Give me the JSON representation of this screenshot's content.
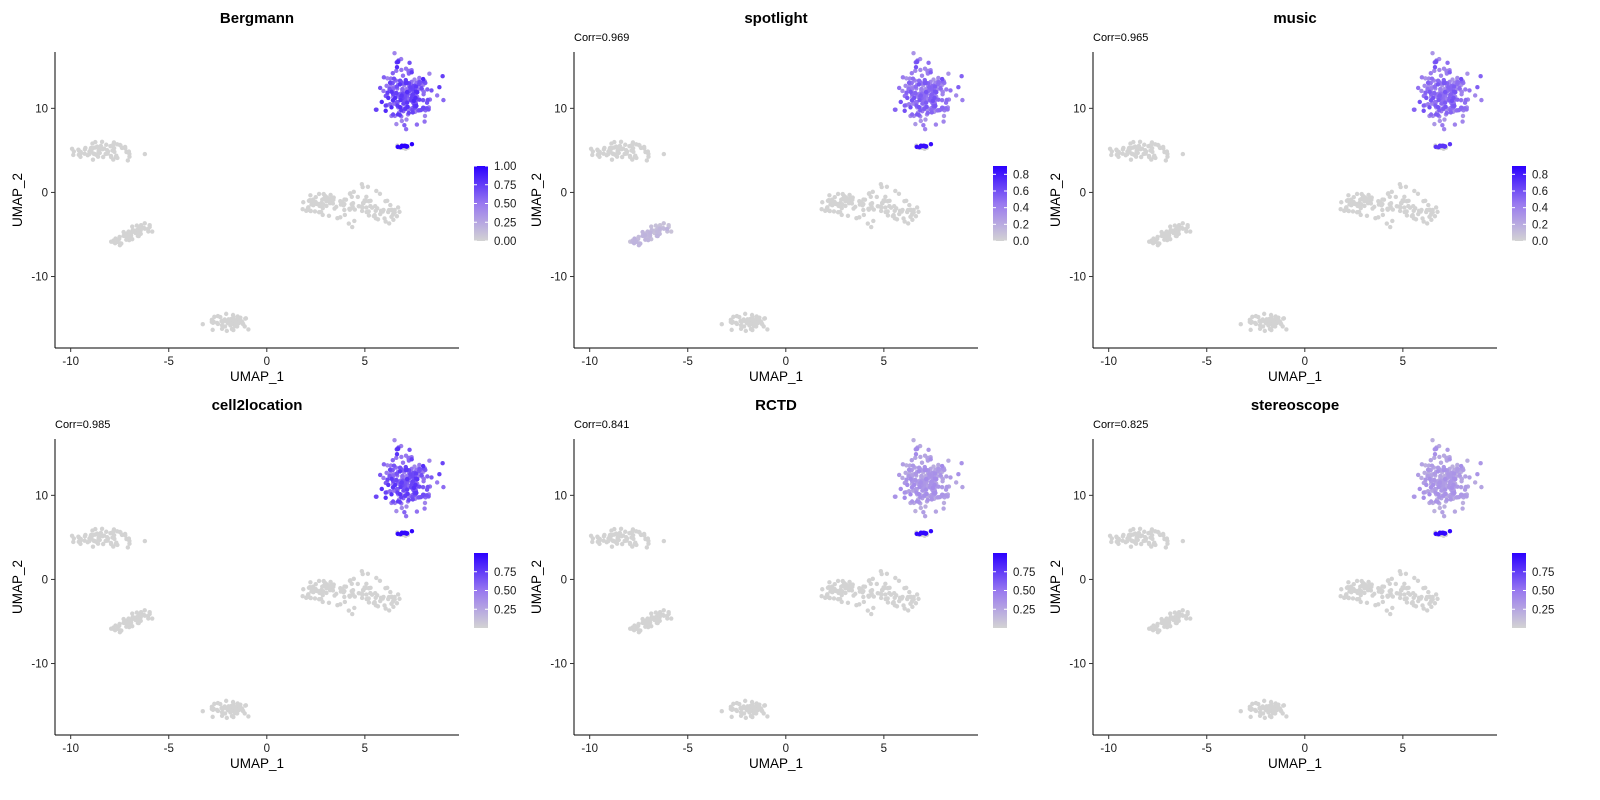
{
  "figure": {
    "background": "#ffffff"
  },
  "style": {
    "low_color": "#d3d3d3",
    "high_color": "#2b00ff",
    "axis_color": "#000000"
  },
  "chart_data": [
    {
      "type": "scatter",
      "title": "Bergmann",
      "subtitle": "",
      "xlabel": "UMAP_1",
      "ylabel": "UMAP_2",
      "xlim": [
        -10.8,
        9.8
      ],
      "ylim": [
        -18.5,
        16.7
      ],
      "xticks": [
        -10,
        -5,
        0,
        5
      ],
      "xtick_labels": [
        "-10",
        "-5",
        "0",
        "5"
      ],
      "yticks": [
        -10,
        0,
        10
      ],
      "ytick_labels": [
        "-10",
        "0",
        "10"
      ],
      "grid": false,
      "legend": {
        "position": "right",
        "min": 0,
        "max": 1.0,
        "ticks": [
          0,
          0.25,
          0.5,
          0.75,
          1.0
        ],
        "tick_labels": [
          "0.00",
          "0.25",
          "0.50",
          "0.75",
          "1.00"
        ]
      },
      "cluster_values": {
        "A": 0.0,
        "B": 0.0,
        "C": 0.0,
        "D": 0.0,
        "E": 0.0,
        "F": 0.62,
        "G": 1.0
      }
    },
    {
      "type": "scatter",
      "title": "spotlight",
      "subtitle": "Corr=0.969",
      "xlabel": "UMAP_1",
      "ylabel": "UMAP_2",
      "xlim": [
        -10.8,
        9.8
      ],
      "ylim": [
        -18.5,
        16.7
      ],
      "xticks": [
        -10,
        -5,
        0,
        5
      ],
      "xtick_labels": [
        "-10",
        "-5",
        "0",
        "5"
      ],
      "yticks": [
        -10,
        0,
        10
      ],
      "ytick_labels": [
        "-10",
        "0",
        "10"
      ],
      "grid": false,
      "legend": {
        "position": "right",
        "min": 0,
        "max": 0.9,
        "ticks": [
          0,
          0.2,
          0.4,
          0.6,
          0.8
        ],
        "tick_labels": [
          "0.0",
          "0.2",
          "0.4",
          "0.6",
          "0.8"
        ]
      },
      "cluster_values": {
        "A": 0.0,
        "B": 0.12,
        "C": 0.0,
        "D": 0.0,
        "E": 0.0,
        "F": 0.45,
        "G": 0.85
      }
    },
    {
      "type": "scatter",
      "title": "music",
      "subtitle": "Corr=0.965",
      "xlabel": "UMAP_1",
      "ylabel": "UMAP_2",
      "xlim": [
        -10.8,
        9.8
      ],
      "ylim": [
        -18.5,
        16.7
      ],
      "xticks": [
        -10,
        -5,
        0,
        5
      ],
      "xtick_labels": [
        "-10",
        "-5",
        "0",
        "5"
      ],
      "yticks": [
        -10,
        0,
        10
      ],
      "ytick_labels": [
        "-10",
        "0",
        "10"
      ],
      "grid": false,
      "legend": {
        "position": "right",
        "min": 0,
        "max": 0.9,
        "ticks": [
          0,
          0.2,
          0.4,
          0.6,
          0.8
        ],
        "tick_labels": [
          "0.0",
          "0.2",
          "0.4",
          "0.6",
          "0.8"
        ]
      },
      "cluster_values": {
        "A": 0.0,
        "B": 0.0,
        "C": 0.0,
        "D": 0.0,
        "E": 0.0,
        "F": 0.45,
        "G": 0.7
      }
    },
    {
      "type": "scatter",
      "title": "cell2location",
      "subtitle": "Corr=0.985",
      "xlabel": "UMAP_1",
      "ylabel": "UMAP_2",
      "xlim": [
        -10.8,
        9.8
      ],
      "ylim": [
        -18.5,
        16.7
      ],
      "xticks": [
        -10,
        -5,
        0,
        5
      ],
      "xtick_labels": [
        "-10",
        "-5",
        "0",
        "5"
      ],
      "yticks": [
        -10,
        0,
        10
      ],
      "ytick_labels": [
        "-10",
        "0",
        "10"
      ],
      "grid": false,
      "legend": {
        "position": "right",
        "min": 0,
        "max": 1.0,
        "ticks": [
          0.25,
          0.5,
          0.75
        ],
        "tick_labels": [
          "0.25",
          "0.50",
          "0.75"
        ]
      },
      "cluster_values": {
        "A": 0.0,
        "B": 0.0,
        "C": 0.0,
        "D": 0.0,
        "E": 0.0,
        "F": 0.6,
        "G": 0.97
      }
    },
    {
      "type": "scatter",
      "title": "RCTD",
      "subtitle": "Corr=0.841",
      "xlabel": "UMAP_1",
      "ylabel": "UMAP_2",
      "xlim": [
        -10.8,
        9.8
      ],
      "ylim": [
        -18.5,
        16.7
      ],
      "xticks": [
        -10,
        -5,
        0,
        5
      ],
      "xtick_labels": [
        "-10",
        "-5",
        "0",
        "5"
      ],
      "yticks": [
        -10,
        0,
        10
      ],
      "ytick_labels": [
        "-10",
        "0",
        "10"
      ],
      "grid": false,
      "legend": {
        "position": "right",
        "min": 0,
        "max": 1.0,
        "ticks": [
          0.25,
          0.5,
          0.75
        ],
        "tick_labels": [
          "0.25",
          "0.50",
          "0.75"
        ]
      },
      "cluster_values": {
        "A": 0.0,
        "B": 0.0,
        "C": 0.0,
        "D": 0.0,
        "E": 0.0,
        "F": 0.3,
        "G": 0.97
      }
    },
    {
      "type": "scatter",
      "title": "stereoscope",
      "subtitle": "Corr=0.825",
      "xlabel": "UMAP_1",
      "ylabel": "UMAP_2",
      "xlim": [
        -10.8,
        9.8
      ],
      "ylim": [
        -18.5,
        16.7
      ],
      "xticks": [
        -10,
        -5,
        0,
        5
      ],
      "xtick_labels": [
        "-10",
        "-5",
        "0",
        "5"
      ],
      "yticks": [
        -10,
        0,
        10
      ],
      "ytick_labels": [
        "-10",
        "0",
        "10"
      ],
      "grid": false,
      "legend": {
        "position": "right",
        "min": 0,
        "max": 1.0,
        "ticks": [
          0.25,
          0.5,
          0.75
        ],
        "tick_labels": [
          "0.25",
          "0.50",
          "0.75"
        ]
      },
      "cluster_values": {
        "A": 0.0,
        "B": 0.0,
        "C": 0.0,
        "D": 0.0,
        "E": 0.0,
        "F": 0.28,
        "G": 0.97
      }
    }
  ],
  "clusters": [
    {
      "id": "A",
      "shape": "blob",
      "x": -8.3,
      "y": 5.0,
      "sx": 0.75,
      "sy": 0.6,
      "n": 70
    },
    {
      "id": "B",
      "shape": "diag",
      "x0": -7.7,
      "y0": -6.1,
      "x1": -6.2,
      "y1": -4.0,
      "w": 0.55,
      "n": 55
    },
    {
      "id": "C",
      "shape": "blob",
      "x": -1.9,
      "y": -15.3,
      "sx": 0.55,
      "sy": 0.45,
      "n": 60
    },
    {
      "id": "D",
      "shape": "band",
      "x0": 1.8,
      "x1": 6.8,
      "yc": -1.8,
      "w": 1.1,
      "n": 130
    },
    {
      "id": "E",
      "shape": "blob",
      "x": 7.0,
      "y": 5.4,
      "sx": 0.12,
      "sy": 0.12,
      "n": 12
    },
    {
      "id": "F",
      "shape": "blob",
      "x": 7.1,
      "y": 11.5,
      "sx": 0.6,
      "sy": 1.45,
      "n": 230
    },
    {
      "id": "G",
      "shape": "blob",
      "x": 7.05,
      "y": 5.5,
      "sx": 0.14,
      "sy": 0.12,
      "n": 10
    }
  ]
}
